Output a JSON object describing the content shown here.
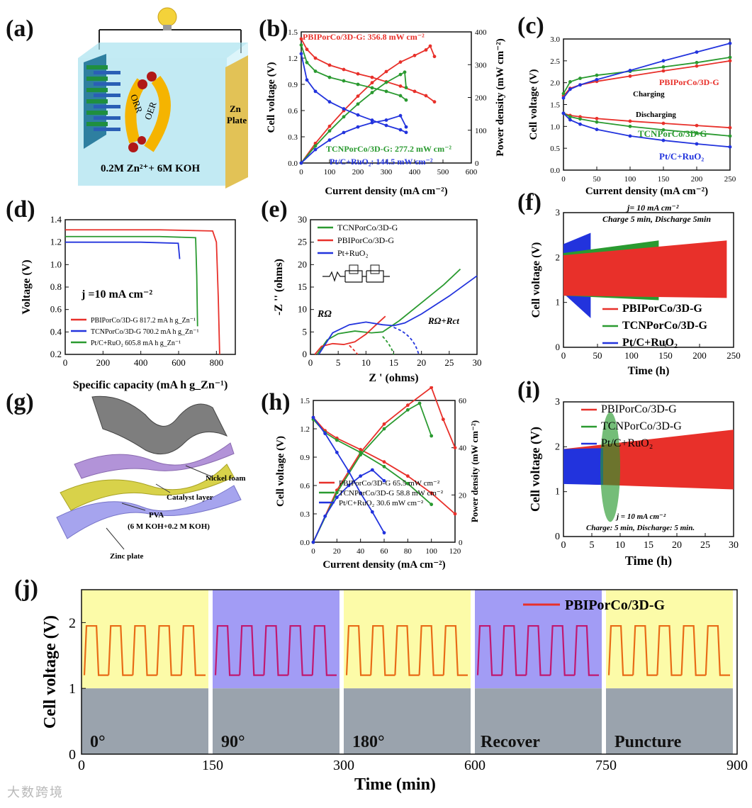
{
  "colors": {
    "red": "#e8302a",
    "green": "#2a9a30",
    "blue": "#2233dd",
    "yellow": "#fcfba8",
    "purple": "#a29cf5"
  },
  "panels": {
    "a": {
      "label": "(a)",
      "electrolyte": "0.2M Zn²⁺+ 6M KOH",
      "orr": "ORR",
      "oer": "OER",
      "zn": "Zn",
      "plate": "Plate"
    },
    "b": {
      "label": "(b)"
    },
    "c": {
      "label": "(c)",
      "charging": "Charging",
      "discharging": "Discharging"
    },
    "d": {
      "label": "(d)",
      "note": "j =10 mA cm⁻²"
    },
    "e": {
      "label": "(e)",
      "r_omega": "RΩ",
      "r_ct": "RΩ+Rct"
    },
    "f": {
      "label": "(f)",
      "note1": "j= 10 mA cm⁻²",
      "note2": "Charge 5 min,  Discharge 5min"
    },
    "g": {
      "label": "(g)",
      "nickel": "Nickel foam",
      "catalyst": "Catalyst layer",
      "pva": "PVA",
      "pva2": "(6 M KOH+0.2 M KOH)",
      "zinc": "Zinc plate"
    },
    "h": {
      "label": "(h)"
    },
    "i": {
      "label": "(i)",
      "note1": "j = 10 mA cm⁻²",
      "note2": "Charge: 5 min, Discharge: 5 min."
    },
    "j": {
      "label": "(j)",
      "legend": "PBIPorCo/3D-G",
      "states": [
        "0°",
        "90°",
        "180°",
        "Recover",
        "Puncture"
      ]
    }
  },
  "watermark": "大数跨境",
  "chart_data": [
    {
      "id": "b",
      "type": "line",
      "xlabel": "Current density (mA cm⁻²)",
      "ylabel": "Cell voltage (V)",
      "y2label": "Power density (mW cm⁻²)",
      "xlim": [
        0,
        600
      ],
      "ylim": [
        0,
        1.5
      ],
      "y2lim": [
        0,
        400
      ],
      "xticks": [
        "0",
        "100",
        "200",
        "300",
        "400",
        "500",
        "600"
      ],
      "yticks": [
        "0.0",
        "0.3",
        "0.6",
        "0.9",
        "1.2",
        "1.5"
      ],
      "y2ticks": [
        "0",
        "100",
        "200",
        "300",
        "400"
      ],
      "annotations": [
        "PBIPorCo/3D-G: 356.8 mW cm⁻²",
        "TCNPorCo/3D-G: 277.2 mW cm⁻²",
        "Pt/C+RuO₂: 144.5 mW cm⁻²"
      ],
      "series": [
        {
          "name": "PBIPorCo/3D-G",
          "color": "red",
          "axis": "left",
          "x": [
            0,
            20,
            50,
            100,
            150,
            200,
            250,
            300,
            350,
            400,
            440,
            470
          ],
          "y": [
            1.42,
            1.3,
            1.2,
            1.12,
            1.07,
            1.02,
            0.98,
            0.93,
            0.88,
            0.82,
            0.77,
            0.7
          ]
        },
        {
          "name": "PBIPorCo/3D-G",
          "color": "red",
          "axis": "right",
          "x": [
            0,
            50,
            100,
            150,
            200,
            250,
            300,
            350,
            400,
            440,
            455,
            470
          ],
          "y": [
            0,
            60,
            112,
            160,
            204,
            245,
            279,
            308,
            328,
            345,
            356.8,
            325
          ]
        },
        {
          "name": "TCNPorCo/3D-G",
          "color": "green",
          "axis": "left",
          "x": [
            0,
            20,
            50,
            100,
            150,
            200,
            250,
            300,
            350,
            370
          ],
          "y": [
            1.35,
            1.15,
            1.05,
            0.98,
            0.94,
            0.9,
            0.86,
            0.82,
            0.77,
            0.72
          ]
        },
        {
          "name": "TCNPorCo/3D-G",
          "color": "green",
          "axis": "right",
          "x": [
            0,
            50,
            100,
            150,
            200,
            250,
            300,
            350,
            365,
            370
          ],
          "y": [
            0,
            52,
            98,
            141,
            180,
            215,
            246,
            270,
            277.2,
            230
          ]
        },
        {
          "name": "Pt/C+RuO₂",
          "color": "blue",
          "axis": "left",
          "x": [
            0,
            20,
            50,
            100,
            150,
            200,
            250,
            300,
            350,
            370
          ],
          "y": [
            1.25,
            0.95,
            0.82,
            0.7,
            0.62,
            0.55,
            0.49,
            0.43,
            0.38,
            0.35
          ]
        },
        {
          "name": "Pt/C+RuO₂",
          "color": "blue",
          "axis": "right",
          "x": [
            0,
            50,
            100,
            150,
            200,
            250,
            300,
            350,
            370
          ],
          "y": [
            0,
            41,
            70,
            93,
            110,
            123,
            131,
            144.5,
            110
          ]
        }
      ]
    },
    {
      "id": "c",
      "type": "line",
      "xlabel": "Current density (mA cm⁻²)",
      "ylabel": "Cell voltage (V)",
      "xlim": [
        0,
        250
      ],
      "ylim": [
        0,
        3.0
      ],
      "xticks": [
        "0",
        "50",
        "100",
        "150",
        "200",
        "250"
      ],
      "yticks": [
        "0.0",
        "0.5",
        "1.0",
        "1.5",
        "2.0",
        "2.5",
        "3.0"
      ],
      "series": [
        {
          "name": "PBIPorCo/3D-G",
          "color": "red",
          "x": [
            0,
            10,
            25,
            50,
            100,
            150,
            200,
            250
          ],
          "y": [
            1.7,
            1.87,
            1.95,
            2.03,
            2.15,
            2.27,
            2.38,
            2.5
          ]
        },
        {
          "name": "TCNPorCo/3D-G",
          "color": "green",
          "x": [
            0,
            10,
            25,
            50,
            100,
            150,
            200,
            250
          ],
          "y": [
            1.75,
            2.02,
            2.1,
            2.17,
            2.26,
            2.36,
            2.46,
            2.58
          ]
        },
        {
          "name": "Pt/C+RuO₂",
          "color": "blue",
          "x": [
            0,
            10,
            25,
            50,
            100,
            150,
            200,
            250
          ],
          "y": [
            1.65,
            1.85,
            1.95,
            2.07,
            2.28,
            2.5,
            2.7,
            2.9
          ]
        },
        {
          "name": "PBIPorCo/3D-G discharge",
          "color": "red",
          "x": [
            0,
            10,
            25,
            50,
            100,
            150,
            200,
            250
          ],
          "y": [
            1.3,
            1.25,
            1.22,
            1.18,
            1.12,
            1.07,
            1.02,
            0.97
          ]
        },
        {
          "name": "TCNPorCo/3D-G discharge",
          "color": "green",
          "x": [
            0,
            10,
            25,
            50,
            100,
            150,
            200,
            250
          ],
          "y": [
            1.3,
            1.22,
            1.17,
            1.1,
            1.0,
            0.92,
            0.85,
            0.78
          ]
        },
        {
          "name": "Pt/C+RuO₂ discharge",
          "color": "blue",
          "x": [
            0,
            10,
            25,
            50,
            100,
            150,
            200,
            250
          ],
          "y": [
            1.3,
            1.15,
            1.05,
            0.93,
            0.78,
            0.68,
            0.6,
            0.53
          ]
        }
      ],
      "legend": [
        "PBIPorCo/3D-G",
        "TCNPorCo/3D-G",
        "Pt/C+RuO₂"
      ]
    },
    {
      "id": "d",
      "type": "line",
      "xlabel": "Specific capacity (mA h g_Zn⁻¹)",
      "ylabel": "Voltage (V)",
      "xlim": [
        0,
        900
      ],
      "ylim": [
        0.2,
        1.4
      ],
      "xticks": [
        "0",
        "200",
        "400",
        "600",
        "800"
      ],
      "yticks": [
        "0.2",
        "0.4",
        "0.6",
        "0.8",
        "1.0",
        "1.2",
        "1.4"
      ],
      "legend": [
        "PBIPorCo/3D-G 817.2 mA h g_Zn⁻¹",
        "TCNPorCo/3D-G 700.2 mA h g_Zn⁻¹",
        "Pt/C+RuO₂ 605.8 mA h g_Zn⁻¹"
      ],
      "series": [
        {
          "name": "PBIPorCo/3D-G",
          "color": "red",
          "x": [
            0,
            100,
            500,
            780,
            800,
            810,
            817.2
          ],
          "y": [
            1.31,
            1.31,
            1.31,
            1.3,
            1.2,
            0.7,
            0.2
          ]
        },
        {
          "name": "TCNPorCo/3D-G",
          "color": "green",
          "x": [
            0,
            100,
            500,
            690,
            696,
            700.2
          ],
          "y": [
            1.25,
            1.25,
            1.25,
            1.24,
            0.9,
            0.45
          ]
        },
        {
          "name": "Pt/C+RuO₂",
          "color": "blue",
          "x": [
            0,
            100,
            400,
            598,
            603,
            605.8
          ],
          "y": [
            1.2,
            1.2,
            1.2,
            1.19,
            1.1,
            1.05
          ]
        }
      ]
    },
    {
      "id": "e",
      "type": "line",
      "xlabel": "Z ' (ohms)",
      "ylabel": "-Z '' (ohms)",
      "xlim": [
        0,
        30
      ],
      "ylim": [
        0,
        30
      ],
      "xticks": [
        "0",
        "5",
        "10",
        "15",
        "20",
        "25",
        "30"
      ],
      "yticks": [
        "0",
        "5",
        "10",
        "15",
        "20",
        "25",
        "30"
      ],
      "legend": [
        "TCNPorCo/3D-G",
        "PBIPorCo/3D-G",
        "Pt+RuO₂"
      ],
      "series": [
        {
          "name": "TCNPorCo/3D-G",
          "color": "green",
          "x": [
            1.2,
            3,
            5,
            8,
            11,
            13,
            16,
            20,
            24,
            27
          ],
          "y": [
            0,
            3.2,
            4.6,
            5.2,
            4.8,
            5,
            7.5,
            11.5,
            15.5,
            19
          ]
        },
        {
          "name": "PBIPorCo/3D-G",
          "color": "red",
          "x": [
            0.8,
            2,
            4,
            6,
            8,
            10,
            12,
            13.5
          ],
          "y": [
            0,
            1.8,
            2.4,
            2.2,
            2.8,
            4.5,
            6.8,
            8.5
          ]
        },
        {
          "name": "Pt+RuO₂",
          "color": "blue",
          "x": [
            1.5,
            4,
            7,
            10,
            13,
            15,
            17,
            20,
            25,
            30
          ],
          "y": [
            0,
            4.8,
            6.6,
            7.2,
            6.6,
            6.4,
            7,
            9,
            13,
            17.5
          ]
        }
      ]
    },
    {
      "id": "f",
      "type": "area",
      "xlabel": "Time (h)",
      "ylabel": "Cell voltage (V)",
      "xlim": [
        0,
        250
      ],
      "ylim": [
        0,
        3
      ],
      "xticks": [
        "0",
        "50",
        "100",
        "150",
        "200",
        "250"
      ],
      "yticks": [
        "0",
        "1",
        "2",
        "3"
      ],
      "legend": [
        "PBIPorCo/3D-G",
        "TCNPorCo/3D-G",
        "Pt/C+RuO₂"
      ],
      "series": [
        {
          "name": "Pt/C+RuO₂",
          "color": "blue",
          "x": [
            0,
            40
          ],
          "upper": [
            2.3,
            2.55
          ],
          "lower": [
            1.2,
            0.65
          ]
        },
        {
          "name": "TCNPorCo/3D-G",
          "color": "green",
          "x": [
            0,
            140
          ],
          "upper": [
            2.1,
            2.38
          ],
          "lower": [
            1.15,
            1.05
          ]
        },
        {
          "name": "PBIPorCo/3D-G",
          "color": "red",
          "x": [
            0,
            240
          ],
          "upper": [
            2.05,
            2.38
          ],
          "lower": [
            1.15,
            1.1
          ]
        }
      ]
    },
    {
      "id": "h",
      "type": "line",
      "xlabel": "Current density (mA cm⁻²)",
      "ylabel": "Cell voltage (V)",
      "y2label": "Power density (mW cm⁻²)",
      "xlim": [
        0,
        120
      ],
      "ylim": [
        0,
        1.5
      ],
      "y2lim": [
        0,
        60
      ],
      "xticks": [
        "0",
        "20",
        "40",
        "60",
        "80",
        "100",
        "120"
      ],
      "yticks": [
        "0.0",
        "0.3",
        "0.6",
        "0.9",
        "1.2",
        "1.5"
      ],
      "y2ticks": [
        "0",
        "20",
        "40",
        "60"
      ],
      "legend": [
        "PBIPorCo/3D-G 65.5 mW cm⁻²",
        "TCNPorCo/3D-G 58.8 mW cm⁻²",
        "Pt/C+RuO₂      30.6 mW cm⁻²"
      ],
      "series": [
        {
          "name": "PBIPorCo/3D-G",
          "color": "red",
          "axis": "left",
          "x": [
            0,
            10,
            20,
            40,
            60,
            80,
            100,
            120
          ],
          "y": [
            1.32,
            1.18,
            1.1,
            0.98,
            0.85,
            0.7,
            0.52,
            0.3
          ]
        },
        {
          "name": "PBIPorCo/3D-G",
          "color": "red",
          "axis": "right",
          "x": [
            0,
            20,
            40,
            60,
            80,
            100,
            110,
            120
          ],
          "y": [
            0,
            22,
            38,
            50,
            58,
            65.5,
            52,
            40
          ]
        },
        {
          "name": "TCNPorCo/3D-G",
          "color": "green",
          "axis": "left",
          "x": [
            0,
            10,
            20,
            40,
            60,
            80,
            100
          ],
          "y": [
            1.3,
            1.16,
            1.08,
            0.95,
            0.8,
            0.62,
            0.4
          ]
        },
        {
          "name": "TCNPorCo/3D-G",
          "color": "green",
          "axis": "right",
          "x": [
            0,
            20,
            40,
            60,
            80,
            90,
            100
          ],
          "y": [
            0,
            21,
            37,
            48,
            56,
            58.8,
            45
          ]
        },
        {
          "name": "Pt/C+RuO₂",
          "color": "blue",
          "axis": "left",
          "x": [
            0,
            10,
            20,
            30,
            40,
            50,
            60
          ],
          "y": [
            1.32,
            1.15,
            0.95,
            0.75,
            0.52,
            0.32,
            0.1
          ]
        },
        {
          "name": "Pt/C+RuO₂",
          "color": "blue",
          "axis": "right",
          "x": [
            0,
            10,
            20,
            30,
            40,
            50,
            60
          ],
          "y": [
            0,
            11,
            19,
            24,
            28,
            30.6,
            26
          ]
        }
      ]
    },
    {
      "id": "i",
      "type": "area",
      "xlabel": "Time (h)",
      "ylabel": "Cell voltage (V)",
      "xlim": [
        0,
        30
      ],
      "ylim": [
        0,
        3
      ],
      "xticks": [
        "0",
        "5",
        "10",
        "15",
        "20",
        "25",
        "30"
      ],
      "yticks": [
        "0",
        "1",
        "2",
        "3"
      ],
      "legend": [
        "PBIPorCo/3D-G",
        "TCNPorCo/3D-G",
        "Pt/C+RuO₂"
      ],
      "series": [
        {
          "name": "PBIPorCo/3D-G",
          "color": "red",
          "x": [
            0,
            30
          ],
          "upper": [
            1.95,
            2.38
          ],
          "lower": [
            1.18,
            1.05
          ]
        },
        {
          "name": "Pt/C+RuO₂",
          "color": "blue",
          "x": [
            0,
            7
          ],
          "upper": [
            1.95,
            1.97
          ],
          "lower": [
            1.17,
            1.15
          ]
        },
        {
          "name": "TCNPorCo/3D-G",
          "color": "green",
          "x": [
            6.5,
            10
          ],
          "upper": [
            1.5,
            2.8
          ],
          "lower": [
            1.5,
            0.35
          ]
        }
      ]
    },
    {
      "id": "j",
      "type": "line",
      "xlabel": "Time (min)",
      "ylabel": "Cell voltage (V)",
      "xlim": [
        0,
        900
      ],
      "ylim": [
        0,
        2.5
      ],
      "xticks": [
        "0",
        "150",
        "300",
        "600",
        "750",
        "900"
      ],
      "yticks": [
        "0",
        "1",
        "2"
      ],
      "series": [
        {
          "name": "PBIPorCo/3D-G",
          "color": "red",
          "charge_v": 1.95,
          "discharge_v": 1.2,
          "cycles_per_segment": 5
        }
      ]
    }
  ]
}
